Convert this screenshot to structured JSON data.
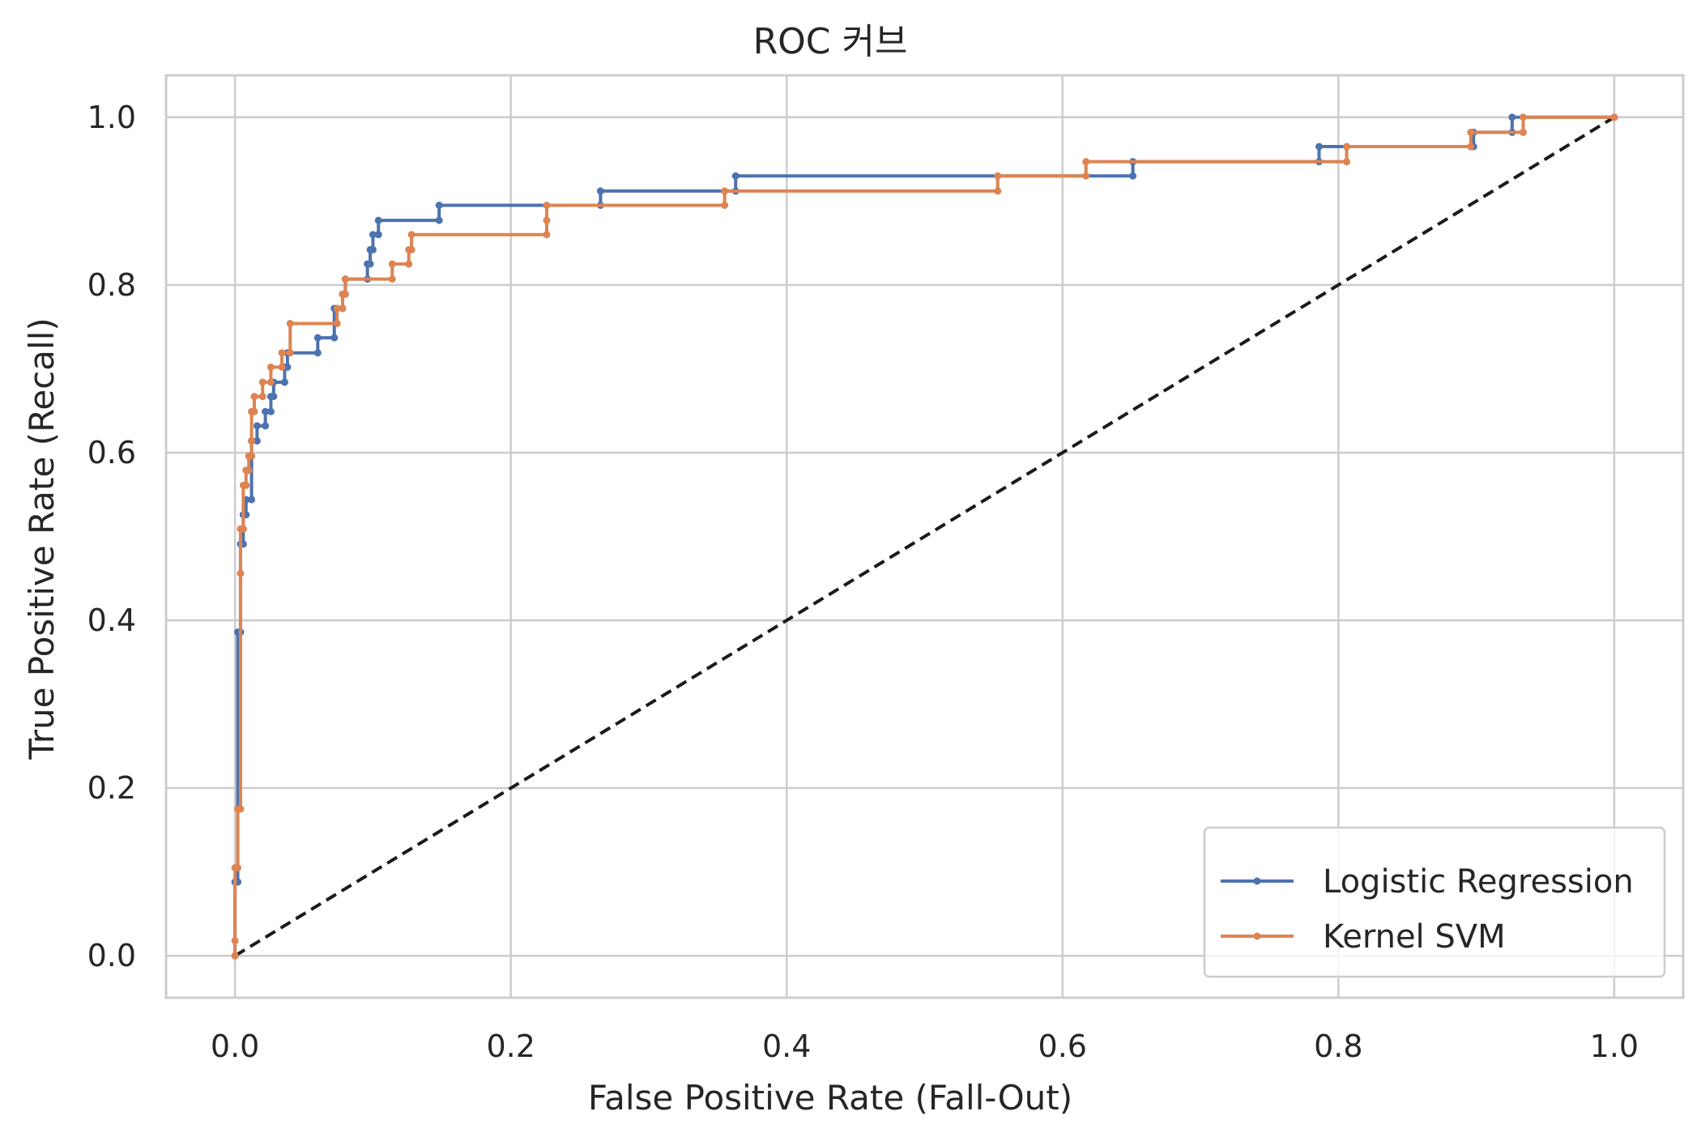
{
  "chart_data": {
    "type": "line",
    "title": "ROC 커브",
    "xlabel": "False Positive Rate (Fall-Out)",
    "ylabel": "True Positive Rate (Recall)",
    "xlim": [
      -0.05,
      1.05
    ],
    "ylim": [
      -0.05,
      1.05
    ],
    "xticks": [
      "0.0",
      "0.2",
      "0.4",
      "0.6",
      "0.8",
      "1.0"
    ],
    "yticks": [
      "0.0",
      "0.2",
      "0.4",
      "0.6",
      "0.8",
      "1.0"
    ],
    "grid": true,
    "legend_position": "lower-right",
    "series": [
      {
        "name": "Logistic Regression",
        "color": "#4c72b0",
        "marker": "point",
        "points": [
          [
            0,
            0
          ],
          [
            0,
            0.088
          ],
          [
            0.002,
            0.088
          ],
          [
            0.002,
            0.386
          ],
          [
            0.004,
            0.386
          ],
          [
            0.004,
            0.491
          ],
          [
            0.006,
            0.491
          ],
          [
            0.006,
            0.526
          ],
          [
            0.008,
            0.526
          ],
          [
            0.008,
            0.544
          ],
          [
            0.012,
            0.544
          ],
          [
            0.012,
            0.614
          ],
          [
            0.016,
            0.614
          ],
          [
            0.016,
            0.632
          ],
          [
            0.022,
            0.632
          ],
          [
            0.022,
            0.649
          ],
          [
            0.026,
            0.649
          ],
          [
            0.026,
            0.667
          ],
          [
            0.028,
            0.667
          ],
          [
            0.028,
            0.684
          ],
          [
            0.036,
            0.684
          ],
          [
            0.036,
            0.702
          ],
          [
            0.038,
            0.702
          ],
          [
            0.038,
            0.719
          ],
          [
            0.06,
            0.719
          ],
          [
            0.06,
            0.737
          ],
          [
            0.072,
            0.737
          ],
          [
            0.072,
            0.772
          ],
          [
            0.078,
            0.772
          ],
          [
            0.078,
            0.789
          ],
          [
            0.08,
            0.789
          ],
          [
            0.08,
            0.807
          ],
          [
            0.096,
            0.807
          ],
          [
            0.096,
            0.825
          ],
          [
            0.098,
            0.825
          ],
          [
            0.098,
            0.842
          ],
          [
            0.1,
            0.842
          ],
          [
            0.1,
            0.86
          ],
          [
            0.104,
            0.86
          ],
          [
            0.104,
            0.877
          ],
          [
            0.148,
            0.877
          ],
          [
            0.148,
            0.895
          ],
          [
            0.265,
            0.895
          ],
          [
            0.265,
            0.912
          ],
          [
            0.363,
            0.912
          ],
          [
            0.363,
            0.93
          ],
          [
            0.651,
            0.93
          ],
          [
            0.651,
            0.947
          ],
          [
            0.786,
            0.947
          ],
          [
            0.786,
            0.965
          ],
          [
            0.898,
            0.965
          ],
          [
            0.898,
            0.982
          ],
          [
            0.926,
            0.982
          ],
          [
            0.926,
            1.0
          ],
          [
            1.0,
            1.0
          ]
        ]
      },
      {
        "name": "Kernel SVM",
        "color": "#dd8452",
        "marker": "point",
        "points": [
          [
            0,
            0
          ],
          [
            0,
            0.018
          ],
          [
            0,
            0.105
          ],
          [
            0.002,
            0.105
          ],
          [
            0.002,
            0.175
          ],
          [
            0.004,
            0.175
          ],
          [
            0.004,
            0.456
          ],
          [
            0.004,
            0.509
          ],
          [
            0.006,
            0.509
          ],
          [
            0.006,
            0.561
          ],
          [
            0.008,
            0.561
          ],
          [
            0.008,
            0.579
          ],
          [
            0.01,
            0.579
          ],
          [
            0.01,
            0.596
          ],
          [
            0.012,
            0.596
          ],
          [
            0.012,
            0.614
          ],
          [
            0.012,
            0.649
          ],
          [
            0.014,
            0.649
          ],
          [
            0.014,
            0.667
          ],
          [
            0.02,
            0.667
          ],
          [
            0.02,
            0.684
          ],
          [
            0.026,
            0.684
          ],
          [
            0.026,
            0.702
          ],
          [
            0.034,
            0.702
          ],
          [
            0.034,
            0.719
          ],
          [
            0.04,
            0.719
          ],
          [
            0.04,
            0.754
          ],
          [
            0.074,
            0.754
          ],
          [
            0.074,
            0.772
          ],
          [
            0.078,
            0.772
          ],
          [
            0.078,
            0.789
          ],
          [
            0.08,
            0.789
          ],
          [
            0.08,
            0.807
          ],
          [
            0.114,
            0.807
          ],
          [
            0.114,
            0.825
          ],
          [
            0.126,
            0.825
          ],
          [
            0.126,
            0.842
          ],
          [
            0.128,
            0.842
          ],
          [
            0.128,
            0.86
          ],
          [
            0.226,
            0.86
          ],
          [
            0.226,
            0.877
          ],
          [
            0.226,
            0.895
          ],
          [
            0.355,
            0.895
          ],
          [
            0.355,
            0.912
          ],
          [
            0.553,
            0.912
          ],
          [
            0.553,
            0.93
          ],
          [
            0.617,
            0.93
          ],
          [
            0.617,
            0.947
          ],
          [
            0.806,
            0.947
          ],
          [
            0.806,
            0.965
          ],
          [
            0.896,
            0.965
          ],
          [
            0.896,
            0.982
          ],
          [
            0.934,
            0.982
          ],
          [
            0.934,
            1.0
          ],
          [
            1.0,
            1.0
          ]
        ]
      },
      {
        "name": "",
        "color": "#1a1a1a",
        "style": "dashed",
        "points": [
          [
            0,
            0
          ],
          [
            1,
            1
          ]
        ]
      }
    ]
  }
}
